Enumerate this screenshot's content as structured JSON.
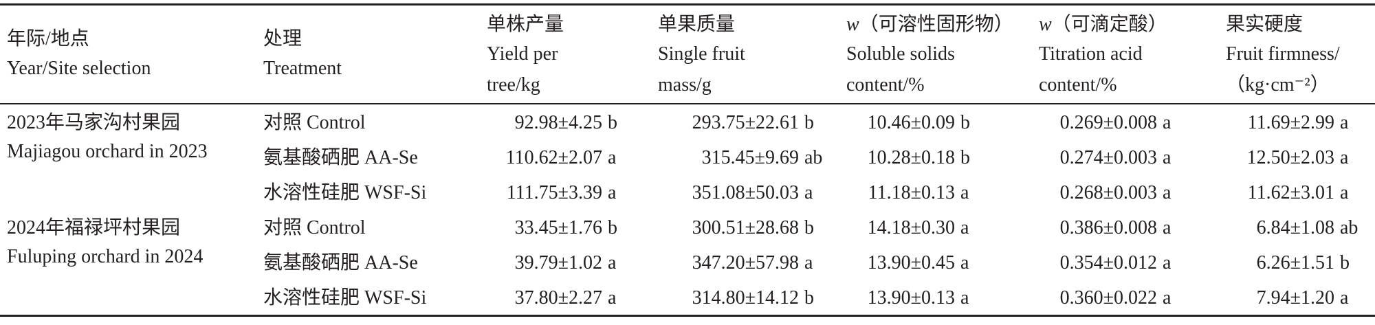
{
  "table": {
    "columns": [
      {
        "lines": [
          "年际/地点",
          "Year/Site selection"
        ]
      },
      {
        "lines": [
          "处理",
          "Treatment"
        ]
      },
      {
        "lines": [
          "单株产量",
          "Yield per",
          "tree/kg"
        ]
      },
      {
        "lines": [
          "单果质量",
          "Single fruit",
          "mass/g"
        ]
      },
      {
        "lines": [
          {
            "var": "w",
            "rest": "（可溶性固形物）"
          },
          "Soluble solids",
          "content/%"
        ]
      },
      {
        "lines": [
          {
            "var": "w",
            "rest": "（可滴定酸）"
          },
          "Titration acid",
          "content/%"
        ]
      },
      {
        "lines": [
          "果实硬度",
          "Fruit firmness/",
          "（kg·cm⁻²）"
        ]
      }
    ],
    "groups": [
      {
        "site": [
          "2023年马家沟村果园",
          "Majiagou orchard in 2023"
        ],
        "rows": [
          {
            "treatment": "对照 Control",
            "cells": [
              {
                "value": "92.98±4.25",
                "letter": "b"
              },
              {
                "value": "293.75±22.61",
                "letter": "b"
              },
              {
                "value": "10.46±0.09",
                "letter": "b"
              },
              {
                "value": "0.269±0.008",
                "letter": "a"
              },
              {
                "value": "11.69±2.99",
                "letter": "a"
              }
            ]
          },
          {
            "treatment": "氨基酸硒肥 AA-Se",
            "cells": [
              {
                "value": "110.62±2.07",
                "letter": "a"
              },
              {
                "value": "315.45±9.69",
                "letter": "ab"
              },
              {
                "value": "10.28±0.18",
                "letter": "b"
              },
              {
                "value": "0.274±0.003",
                "letter": "a"
              },
              {
                "value": "12.50±2.03",
                "letter": "a"
              }
            ]
          },
          {
            "treatment": "水溶性硅肥 WSF-Si",
            "cells": [
              {
                "value": "111.75±3.39",
                "letter": "a"
              },
              {
                "value": "351.08±50.03",
                "letter": "a"
              },
              {
                "value": "11.18±0.13",
                "letter": "a"
              },
              {
                "value": "0.268±0.003",
                "letter": "a"
              },
              {
                "value": "11.62±3.01",
                "letter": "a"
              }
            ]
          }
        ]
      },
      {
        "site": [
          "2024年福禄坪村果园",
          "Fuluping orchard in 2024"
        ],
        "rows": [
          {
            "treatment": "对照 Control",
            "cells": [
              {
                "value": "33.45±1.76",
                "letter": "b"
              },
              {
                "value": "300.51±28.68",
                "letter": "b"
              },
              {
                "value": "14.18±0.30",
                "letter": "a"
              },
              {
                "value": "0.386±0.008",
                "letter": "a"
              },
              {
                "value": "6.84±1.08",
                "letter": "ab"
              }
            ]
          },
          {
            "treatment": "氨基酸硒肥 AA-Se",
            "cells": [
              {
                "value": "39.79±1.02",
                "letter": "a"
              },
              {
                "value": "347.20±57.98",
                "letter": "a"
              },
              {
                "value": "13.90±0.45",
                "letter": "a"
              },
              {
                "value": "0.354±0.012",
                "letter": "a"
              },
              {
                "value": "6.26±1.51",
                "letter": "b"
              }
            ]
          },
          {
            "treatment": "水溶性硅肥 WSF-Si",
            "cells": [
              {
                "value": "37.80±2.27",
                "letter": "a"
              },
              {
                "value": "314.80±14.12",
                "letter": "b"
              },
              {
                "value": "13.90±0.13",
                "letter": "a"
              },
              {
                "value": "0.360±0.022",
                "letter": "a"
              },
              {
                "value": "7.94±1.20",
                "letter": "a"
              }
            ]
          }
        ]
      }
    ]
  }
}
